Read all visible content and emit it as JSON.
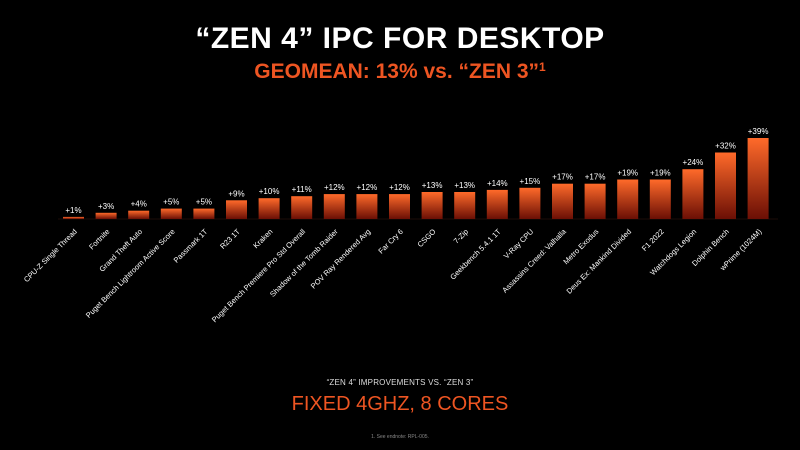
{
  "header": {
    "title": "“ZEN 4” IPC FOR DESKTOP",
    "subtitle": "GEOMEAN: 13% vs. “ZEN 3”",
    "subtitle_sup": "1"
  },
  "footer": {
    "note": "“ZEN 4” IMPROVEMENTS VS. “ZEN 3”",
    "main": "FIXED 4GHZ, 8 CORES",
    "endnote": "1. See endnote: RPL-005."
  },
  "colors": {
    "bar_top": "#ff6a2a",
    "bar_bottom": "#6b0f05",
    "subtitle": "#ee5522",
    "text": "#ffffff"
  },
  "chart_data": {
    "type": "bar",
    "categories": [
      "CPU-Z Single Thread",
      "Fortnite",
      "Grand Theft Auto",
      "Puget Bench Lightroom Active Score",
      "Passmark 1T",
      "R23 1T",
      "Kraken",
      "Puget Bench Premiere Pro Std Overall",
      "Shadow of the Tomb Raider",
      "POV Ray Rendered Avg",
      "Far Cry 6",
      "CSGO",
      "7-Zip",
      "Geekbench 5.4.1 1T",
      "V-Ray CPU",
      "Assassins Creed: Valhalla",
      "Metro Exodus",
      "Deus Ex: Mankind Divided",
      "F1 2022",
      "Watchdogs Legion",
      "Dolphin Bench",
      "wPrime (1024M)"
    ],
    "values": [
      1,
      3,
      4,
      5,
      5,
      9,
      10,
      11,
      12,
      12,
      12,
      13,
      13,
      14,
      15,
      17,
      17,
      19,
      19,
      24,
      32,
      39
    ],
    "labels": [
      "+1%",
      "+3%",
      "+4%",
      "+5%",
      "+5%",
      "+9%",
      "+10%",
      "+11%",
      "+12%",
      "+12%",
      "+12%",
      "+13%",
      "+13%",
      "+14%",
      "+15%",
      "+17%",
      "+17%",
      "+19%",
      "+19%",
      "+24%",
      "+32%",
      "+39%"
    ],
    "ylim": [
      0,
      39
    ],
    "grid": false,
    "legend": "none"
  }
}
